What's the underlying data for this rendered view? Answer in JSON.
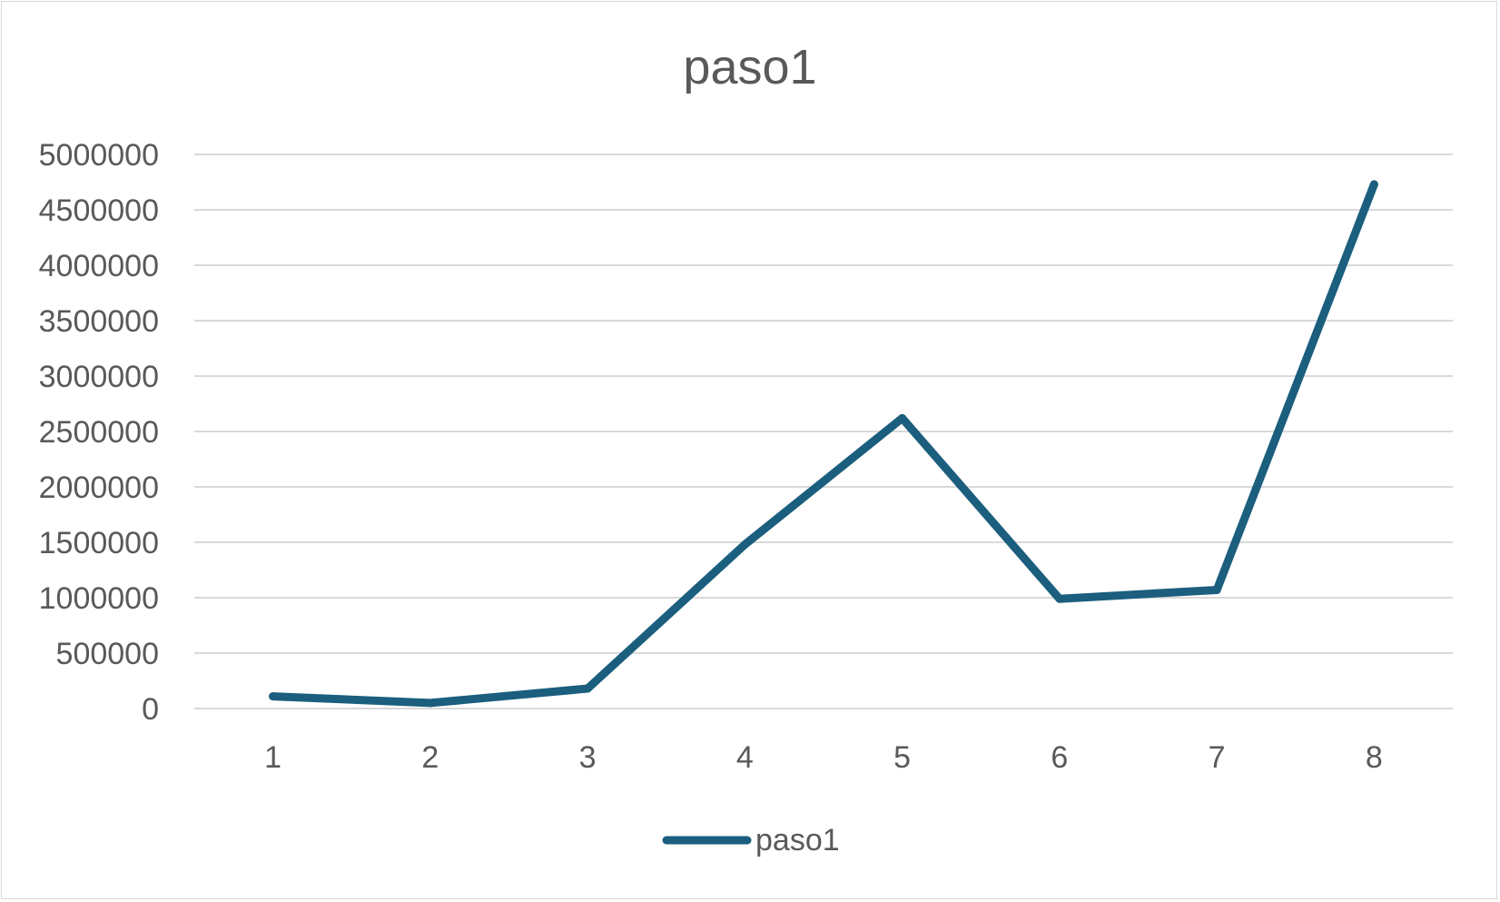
{
  "chart_data": {
    "type": "line",
    "title": "paso1",
    "xlabel": "",
    "ylabel": "",
    "categories": [
      "1",
      "2",
      "3",
      "4",
      "5",
      "6",
      "7",
      "8"
    ],
    "series": [
      {
        "name": "paso1",
        "values": [
          110000,
          50000,
          180000,
          1480000,
          2620000,
          990000,
          1070000,
          4730000
        ]
      }
    ],
    "ylim": [
      0,
      5000000
    ],
    "y_ticks": [
      "0",
      "500000",
      "1000000",
      "1500000",
      "2000000",
      "2500000",
      "3000000",
      "3500000",
      "4000000",
      "4500000",
      "5000000"
    ],
    "grid": true,
    "legend_position": "bottom",
    "colors": {
      "series": "#1b5e7e",
      "grid": "#d9d9d9",
      "text": "#595959"
    }
  }
}
